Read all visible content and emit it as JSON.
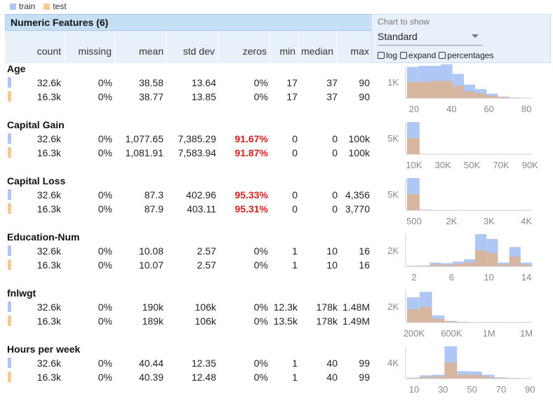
{
  "legend": [
    {
      "label": "train",
      "color": "#aec7f5"
    },
    {
      "label": "test",
      "color": "#f8ca91"
    }
  ],
  "table_title": "Numeric Features (6)",
  "columns": [
    "count",
    "missing",
    "mean",
    "std dev",
    "zeros",
    "min",
    "median",
    "max"
  ],
  "chart_control": {
    "label": "Chart to show",
    "selected": "Standard",
    "options": [
      "log",
      "expand",
      "percentages"
    ]
  },
  "colors": {
    "train": "#aec7f5",
    "test": "#f8ca91",
    "overlap": "#d7b59f",
    "zeros_highlight": "#d62020"
  },
  "features": [
    {
      "name": "Age",
      "rows": [
        {
          "set": "train",
          "values": [
            "32.6k",
            "0%",
            "38.58",
            "13.64",
            "0%",
            "17",
            "37",
            "90"
          ],
          "zeros_high": false
        },
        {
          "set": "test",
          "values": [
            "16.3k",
            "0%",
            "38.77",
            "13.85",
            "0%",
            "17",
            "37",
            "90"
          ],
          "zeros_high": false
        }
      ],
      "histogram": {
        "ytick": "1K",
        "xticks": [
          "20",
          "40",
          "60",
          "80"
        ],
        "train": [
          0.97,
          1.0,
          1.0,
          1.05,
          0.75,
          0.42,
          0.28,
          0.14,
          0.05,
          0.02,
          0.0
        ],
        "test": [
          0.5,
          0.5,
          0.53,
          0.53,
          0.38,
          0.21,
          0.14,
          0.07,
          0.03,
          0.01,
          0.0
        ]
      }
    },
    {
      "name": "Capital Gain",
      "rows": [
        {
          "set": "train",
          "values": [
            "32.6k",
            "0%",
            "1,077.65",
            "7,385.29",
            "91.67%",
            "0",
            "0",
            "100k"
          ],
          "zeros_high": true
        },
        {
          "set": "test",
          "values": [
            "16.3k",
            "0%",
            "1,081.91",
            "7,583.94",
            "91.87%",
            "0",
            "0",
            "100k"
          ],
          "zeros_high": true
        }
      ],
      "histogram": {
        "ytick": "5K",
        "xticks": [
          "10K",
          "30K",
          "50K",
          "70K",
          "90K"
        ],
        "train": [
          1.0,
          0.01,
          0.0,
          0.0,
          0.0,
          0.0,
          0.0,
          0.0,
          0.0,
          0.0
        ],
        "test": [
          0.5,
          0.005,
          0.0,
          0.0,
          0.0,
          0.0,
          0.0,
          0.0,
          0.0,
          0.0
        ]
      }
    },
    {
      "name": "Capital Loss",
      "rows": [
        {
          "set": "train",
          "values": [
            "32.6k",
            "0%",
            "87.3",
            "402.96",
            "95.33%",
            "0",
            "0",
            "4,356"
          ],
          "zeros_high": true
        },
        {
          "set": "test",
          "values": [
            "16.3k",
            "0%",
            "87.9",
            "403.11",
            "95.31%",
            "0",
            "0",
            "3,770"
          ],
          "zeros_high": true
        }
      ],
      "histogram": {
        "ytick": "5K",
        "xticks": [
          "500",
          "2K",
          "3K",
          "4K"
        ],
        "train": [
          1.0,
          0.02,
          0.0,
          0.0,
          0.0,
          0.0,
          0.0,
          0.0,
          0.0,
          0.0
        ],
        "test": [
          0.5,
          0.01,
          0.0,
          0.0,
          0.0,
          0.0,
          0.0,
          0.0,
          0.0,
          0.0
        ]
      }
    },
    {
      "name": "Education-Num",
      "rows": [
        {
          "set": "train",
          "values": [
            "32.6k",
            "0%",
            "10.08",
            "2.57",
            "0%",
            "1",
            "10",
            "16"
          ],
          "zeros_high": false
        },
        {
          "set": "test",
          "values": [
            "16.3k",
            "0%",
            "10.07",
            "2.57",
            "0%",
            "1",
            "10",
            "16"
          ],
          "zeros_high": false
        }
      ],
      "histogram": {
        "ytick": "2K",
        "xticks": [
          "2",
          "6",
          "10",
          "14"
        ],
        "train": [
          0.02,
          0.03,
          0.12,
          0.1,
          0.15,
          0.22,
          1.0,
          0.85,
          0.12,
          0.6,
          0.12
        ],
        "test": [
          0.01,
          0.02,
          0.06,
          0.05,
          0.08,
          0.12,
          0.5,
          0.42,
          0.06,
          0.3,
          0.06
        ]
      }
    },
    {
      "name": "fnlwgt",
      "rows": [
        {
          "set": "train",
          "values": [
            "32.6k",
            "0%",
            "190k",
            "106k",
            "0%",
            "12.3k",
            "178k",
            "1.48M"
          ],
          "zeros_high": false
        },
        {
          "set": "test",
          "values": [
            "16.3k",
            "0%",
            "189k",
            "106k",
            "0%",
            "13.5k",
            "178k",
            "1.49M"
          ],
          "zeros_high": false
        }
      ],
      "histogram": {
        "ytick": "2K",
        "xticks": [
          "200K",
          "600K",
          "1M",
          "1M"
        ],
        "train": [
          0.78,
          0.95,
          0.22,
          0.05,
          0.02,
          0.01,
          0.005,
          0.0,
          0.0,
          0.0
        ],
        "test": [
          0.4,
          0.48,
          0.11,
          0.03,
          0.01,
          0.005,
          0.0,
          0.0,
          0.0,
          0.0
        ]
      }
    },
    {
      "name": "Hours per week",
      "rows": [
        {
          "set": "train",
          "values": [
            "32.6k",
            "0%",
            "40.44",
            "12.35",
            "0%",
            "1",
            "40",
            "99"
          ],
          "zeros_high": false
        },
        {
          "set": "test",
          "values": [
            "16.3k",
            "0%",
            "40.39",
            "12.48",
            "0%",
            "1",
            "40",
            "99"
          ],
          "zeros_high": false
        }
      ],
      "histogram": {
        "ytick": "4K",
        "xticks": [
          "10",
          "30",
          "50",
          "70",
          "90"
        ],
        "train": [
          0.03,
          0.1,
          0.12,
          1.0,
          0.23,
          0.22,
          0.12,
          0.04,
          0.02,
          0.01
        ],
        "test": [
          0.015,
          0.05,
          0.06,
          0.5,
          0.12,
          0.11,
          0.06,
          0.02,
          0.01,
          0.005
        ]
      }
    }
  ]
}
